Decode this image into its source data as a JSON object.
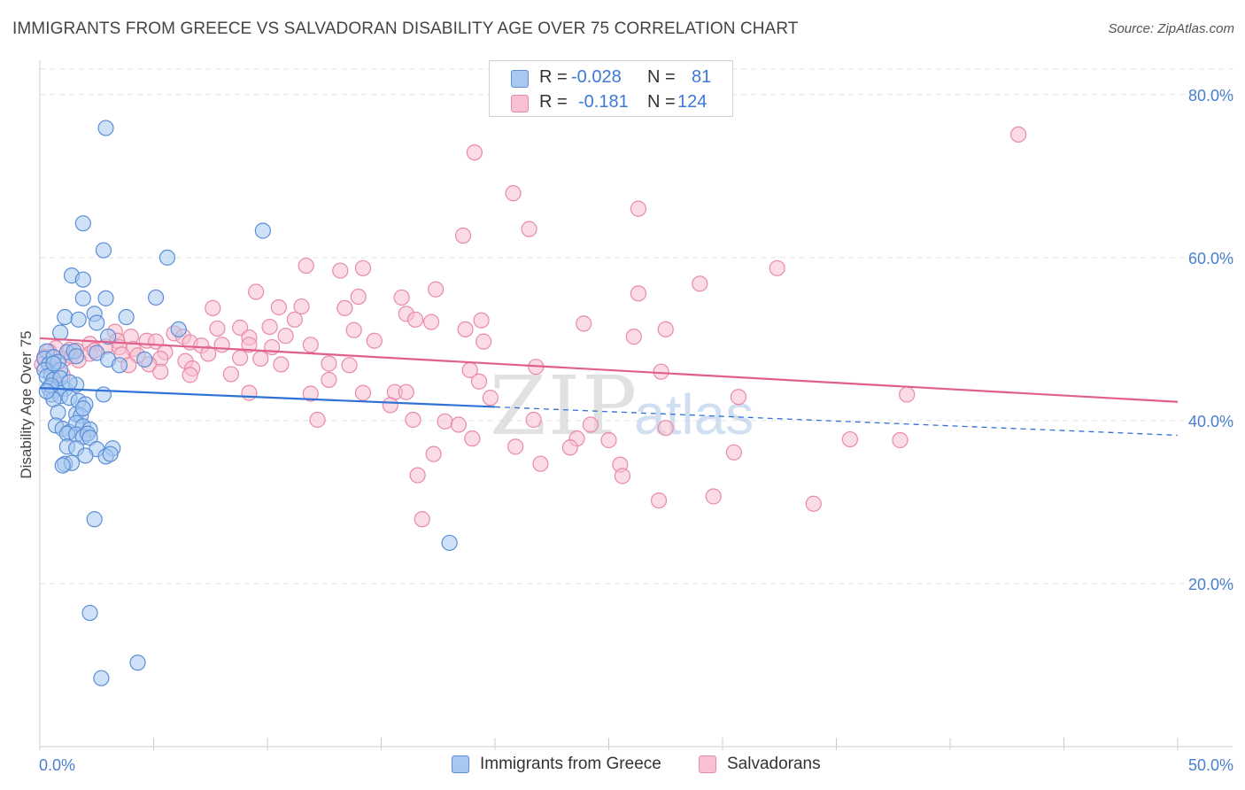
{
  "title": "IMMIGRANTS FROM GREECE VS SALVADORAN DISABILITY AGE OVER 75 CORRELATION CHART",
  "source": "Source: ZipAtlas.com",
  "watermark": {
    "zip": "ZIP",
    "atlas": "atlas"
  },
  "legend": {
    "rows": [
      {
        "r_label": "R =",
        "r_value": "-0.028",
        "n_label": "N =",
        "n_value": "81"
      },
      {
        "r_label": "R =",
        "r_value": "-0.181",
        "n_label": "N =",
        "n_value": "124"
      }
    ]
  },
  "colors": {
    "blue_fill": "#a8c8f0",
    "blue_stroke": "#5b8ed6",
    "blue_line": "#2f72d6",
    "pink_fill": "#f8c0d0",
    "pink_stroke": "#e88aa8",
    "pink_line": "#e0608a",
    "grid": "#e3e3e3",
    "tick_text": "#4a7fd0"
  },
  "chart_data": {
    "type": "scatter",
    "title": "IMMIGRANTS FROM GREECE VS SALVADORAN DISABILITY AGE OVER 75 CORRELATION CHART",
    "xlabel": "",
    "ylabel": "Disability Age Over 75",
    "xlim": [
      0,
      50
    ],
    "ylim": [
      0,
      84
    ],
    "x_tick_labels": [
      "0.0%",
      "50.0%"
    ],
    "y_ticks": [
      20,
      40,
      60,
      80
    ],
    "y_tick_labels": [
      "20.0%",
      "40.0%",
      "60.0%",
      "80.0%"
    ],
    "grid": true,
    "legend_position": "bottom",
    "series": [
      {
        "name": "Immigrants from Greece",
        "r": -0.028,
        "n": 81,
        "trend": {
          "x": [
            0,
            50
          ],
          "y": [
            44.0,
            38.2
          ],
          "solid_until_x": 20
        },
        "points": [
          [
            2.9,
            75.9
          ],
          [
            1.9,
            64.2
          ],
          [
            2.8,
            60.9
          ],
          [
            5.6,
            60.0
          ],
          [
            9.8,
            63.3
          ],
          [
            1.4,
            57.8
          ],
          [
            1.9,
            57.3
          ],
          [
            1.9,
            55.0
          ],
          [
            2.9,
            55.0
          ],
          [
            5.1,
            55.1
          ],
          [
            1.1,
            52.7
          ],
          [
            1.7,
            52.4
          ],
          [
            2.4,
            53.1
          ],
          [
            3.8,
            52.7
          ],
          [
            2.5,
            52.0
          ],
          [
            6.1,
            51.2
          ],
          [
            0.9,
            50.8
          ],
          [
            3.0,
            50.3
          ],
          [
            0.3,
            48.5
          ],
          [
            1.2,
            48.4
          ],
          [
            1.5,
            48.5
          ],
          [
            1.6,
            47.9
          ],
          [
            2.5,
            48.3
          ],
          [
            3.0,
            47.5
          ],
          [
            4.6,
            47.5
          ],
          [
            3.5,
            46.8
          ],
          [
            0.2,
            47.6
          ],
          [
            0.4,
            46.9
          ],
          [
            0.6,
            47.8
          ],
          [
            0.8,
            47.2
          ],
          [
            0.2,
            46.2
          ],
          [
            0.5,
            45.6
          ],
          [
            0.9,
            46.2
          ],
          [
            0.3,
            45.4
          ],
          [
            0.6,
            45.0
          ],
          [
            0.4,
            44.0
          ],
          [
            0.7,
            43.8
          ],
          [
            1.1,
            43.9
          ],
          [
            1.6,
            44.4
          ],
          [
            0.5,
            43.2
          ],
          [
            0.9,
            43.0
          ],
          [
            1.3,
            42.8
          ],
          [
            0.6,
            42.6
          ],
          [
            1.7,
            42.4
          ],
          [
            2.0,
            42.0
          ],
          [
            2.8,
            43.2
          ],
          [
            0.8,
            41.0
          ],
          [
            1.6,
            40.8
          ],
          [
            1.8,
            40.6
          ],
          [
            0.7,
            39.4
          ],
          [
            1.0,
            39.0
          ],
          [
            1.3,
            38.6
          ],
          [
            1.6,
            39.7
          ],
          [
            1.9,
            39.3
          ],
          [
            2.2,
            38.9
          ],
          [
            1.2,
            38.4
          ],
          [
            1.6,
            38.3
          ],
          [
            1.9,
            38.0
          ],
          [
            2.1,
            38.4
          ],
          [
            2.2,
            37.9
          ],
          [
            1.2,
            36.8
          ],
          [
            1.6,
            36.6
          ],
          [
            2.5,
            36.5
          ],
          [
            3.2,
            36.6
          ],
          [
            2.0,
            35.7
          ],
          [
            2.9,
            35.6
          ],
          [
            3.1,
            35.9
          ],
          [
            1.1,
            34.7
          ],
          [
            1.4,
            34.8
          ],
          [
            1.0,
            34.5
          ],
          [
            2.4,
            27.9
          ],
          [
            18.0,
            25.0
          ],
          [
            2.2,
            16.4
          ],
          [
            4.3,
            10.3
          ],
          [
            2.7,
            8.4
          ],
          [
            0.6,
            47.0
          ],
          [
            0.9,
            45.2
          ],
          [
            1.3,
            44.7
          ],
          [
            0.5,
            44.3
          ],
          [
            1.9,
            41.5
          ],
          [
            0.3,
            43.6
          ]
        ]
      },
      {
        "name": "Salvadorans",
        "r": -0.181,
        "n": 124,
        "trend": {
          "x": [
            0,
            50
          ],
          "y": [
            50.1,
            42.3
          ]
        },
        "points": [
          [
            43.0,
            75.1
          ],
          [
            19.1,
            72.9
          ],
          [
            20.8,
            67.9
          ],
          [
            26.3,
            66.0
          ],
          [
            21.5,
            63.5
          ],
          [
            18.6,
            62.7
          ],
          [
            11.7,
            59.0
          ],
          [
            13.2,
            58.4
          ],
          [
            14.2,
            58.7
          ],
          [
            32.4,
            58.7
          ],
          [
            29.0,
            56.8
          ],
          [
            9.5,
            55.8
          ],
          [
            17.4,
            56.1
          ],
          [
            15.9,
            55.1
          ],
          [
            14.0,
            55.2
          ],
          [
            26.3,
            55.6
          ],
          [
            7.6,
            53.8
          ],
          [
            10.5,
            53.9
          ],
          [
            11.5,
            54.0
          ],
          [
            13.4,
            53.8
          ],
          [
            16.1,
            53.1
          ],
          [
            16.5,
            52.4
          ],
          [
            11.2,
            52.4
          ],
          [
            17.2,
            52.1
          ],
          [
            19.4,
            52.3
          ],
          [
            23.9,
            51.9
          ],
          [
            7.8,
            51.3
          ],
          [
            8.8,
            51.4
          ],
          [
            10.1,
            51.5
          ],
          [
            13.8,
            51.1
          ],
          [
            18.7,
            51.2
          ],
          [
            27.5,
            51.2
          ],
          [
            5.9,
            50.7
          ],
          [
            3.3,
            50.9
          ],
          [
            4.0,
            50.3
          ],
          [
            6.3,
            50.3
          ],
          [
            9.2,
            50.2
          ],
          [
            10.8,
            50.4
          ],
          [
            26.1,
            50.3
          ],
          [
            3.4,
            49.8
          ],
          [
            4.7,
            49.8
          ],
          [
            5.1,
            49.7
          ],
          [
            6.6,
            49.6
          ],
          [
            7.1,
            49.2
          ],
          [
            8.0,
            49.3
          ],
          [
            9.2,
            49.3
          ],
          [
            10.2,
            49.0
          ],
          [
            11.9,
            49.3
          ],
          [
            14.7,
            49.8
          ],
          [
            19.5,
            49.7
          ],
          [
            2.2,
            49.4
          ],
          [
            2.9,
            49.1
          ],
          [
            3.5,
            49.0
          ],
          [
            4.1,
            48.8
          ],
          [
            0.7,
            48.9
          ],
          [
            1.3,
            48.7
          ],
          [
            1.6,
            48.6
          ],
          [
            2.2,
            48.2
          ],
          [
            0.4,
            48.5
          ],
          [
            3.6,
            48.1
          ],
          [
            4.3,
            48.0
          ],
          [
            5.5,
            48.4
          ],
          [
            0.2,
            47.8
          ],
          [
            0.6,
            47.7
          ],
          [
            1.1,
            47.6
          ],
          [
            1.4,
            47.9
          ],
          [
            1.7,
            47.4
          ],
          [
            5.3,
            47.6
          ],
          [
            6.4,
            47.3
          ],
          [
            8.8,
            47.7
          ],
          [
            9.7,
            47.6
          ],
          [
            0.1,
            46.9
          ],
          [
            0.5,
            46.5
          ],
          [
            3.9,
            46.8
          ],
          [
            4.8,
            46.9
          ],
          [
            6.7,
            46.4
          ],
          [
            10.6,
            46.9
          ],
          [
            12.7,
            47.0
          ],
          [
            13.6,
            46.8
          ],
          [
            5.3,
            46.0
          ],
          [
            6.6,
            45.6
          ],
          [
            8.4,
            45.7
          ],
          [
            18.9,
            46.2
          ],
          [
            21.8,
            46.6
          ],
          [
            27.3,
            46.0
          ],
          [
            12.7,
            45.0
          ],
          [
            19.3,
            44.8
          ],
          [
            9.2,
            43.4
          ],
          [
            11.9,
            43.3
          ],
          [
            14.2,
            43.4
          ],
          [
            15.6,
            43.5
          ],
          [
            16.1,
            43.5
          ],
          [
            19.8,
            42.8
          ],
          [
            30.7,
            42.9
          ],
          [
            38.1,
            43.2
          ],
          [
            15.4,
            41.9
          ],
          [
            12.2,
            40.1
          ],
          [
            16.4,
            40.1
          ],
          [
            17.8,
            39.9
          ],
          [
            18.4,
            39.5
          ],
          [
            21.7,
            40.1
          ],
          [
            24.2,
            39.5
          ],
          [
            27.5,
            39.1
          ],
          [
            19.0,
            37.8
          ],
          [
            23.6,
            37.8
          ],
          [
            25.0,
            37.6
          ],
          [
            35.6,
            37.7
          ],
          [
            37.8,
            37.6
          ],
          [
            20.9,
            36.8
          ],
          [
            23.3,
            36.7
          ],
          [
            17.3,
            35.9
          ],
          [
            30.5,
            36.1
          ],
          [
            22.0,
            34.7
          ],
          [
            25.5,
            34.6
          ],
          [
            16.6,
            33.3
          ],
          [
            25.6,
            33.2
          ],
          [
            27.2,
            30.2
          ],
          [
            29.6,
            30.7
          ],
          [
            34.0,
            29.8
          ],
          [
            16.8,
            27.9
          ],
          [
            1.0,
            45.6
          ],
          [
            2.4,
            48.6
          ],
          [
            7.4,
            48.2
          ]
        ]
      }
    ]
  },
  "bottom_legend": [
    "Immigrants from Greece",
    "Salvadorans"
  ]
}
